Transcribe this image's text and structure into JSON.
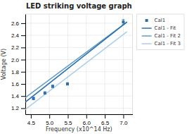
{
  "chart_data": {
    "type": "scatter",
    "title": "LED striking voltage graph",
    "xlabel": "Frequency (x10^14 Hz)",
    "ylabel": "Voltage (V)",
    "xlim": [
      4.35,
      7.25
    ],
    "ylim": [
      1.1,
      2.75
    ],
    "xticks": [
      4.5,
      {
        "value": 5.0,
        "label": "5.0"
      },
      5.5,
      {
        "value": 6.0,
        "label": "6.0"
      },
      6.5,
      {
        "value": 7.0,
        "label": "7.0"
      }
    ],
    "yticks": [
      1.2,
      1.4,
      1.6,
      1.8,
      {
        "value": 2.0,
        "label": "2.0"
      },
      2.2,
      2.4,
      2.6
    ],
    "grid": true,
    "legend": "upper right",
    "series": [
      {
        "name": "Cal1",
        "type": "scatter",
        "marker": "square",
        "color": "#2e6fad",
        "x": [
          4.57,
          4.88,
          5.09,
          5.49,
          7.0
        ],
        "values": [
          1.36,
          1.45,
          1.56,
          1.6,
          2.62
        ],
        "yerr": [
          0.02,
          0.02,
          0.02,
          0.02,
          0.04
        ]
      },
      {
        "name": "Cal1 - Fit",
        "type": "line",
        "color": "#2e6fad",
        "x": [
          4.35,
          7.1
        ],
        "values": [
          1.3,
          2.62
        ]
      },
      {
        "name": "Cal1 - Fit 2",
        "type": "line",
        "color": "#5b9ec9",
        "x": [
          4.35,
          7.1
        ],
        "values": [
          1.375,
          2.62
        ]
      },
      {
        "name": "Cal1 - Fit 3",
        "type": "line",
        "color": "#aacde8",
        "x": [
          4.35,
          7.1
        ],
        "values": [
          1.18,
          2.46
        ]
      }
    ]
  }
}
